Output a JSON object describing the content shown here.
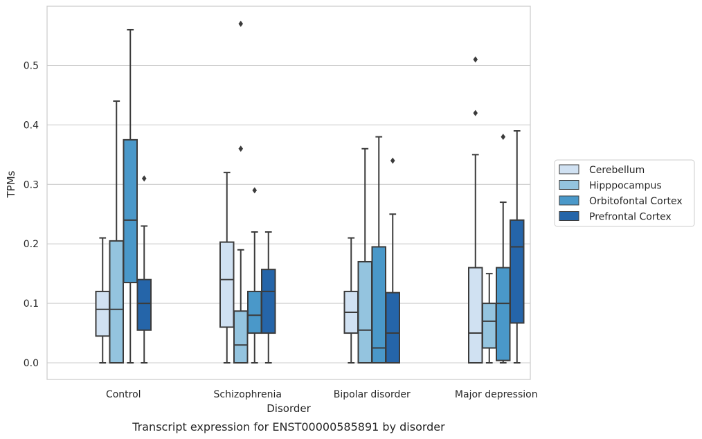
{
  "chart_data": {
    "type": "box",
    "xlabel": "Disorder",
    "ylabel": "TPMs",
    "caption": "Transcript expression for ENST00000585891 by disorder",
    "ylim": [
      -0.028,
      0.6
    ],
    "y_ticks": [
      0.0,
      0.1,
      0.2,
      0.3,
      0.4,
      0.5
    ],
    "y_tick_labels": [
      "0.0",
      "0.1",
      "0.2",
      "0.3",
      "0.4",
      "0.5"
    ],
    "grid": "horizontal",
    "legend_position": "right",
    "categories": [
      "Control",
      "Schizophrenia",
      "Bipolar disorder",
      "Major depression"
    ],
    "series": [
      {
        "name": "Cerebellum",
        "color": "#d0e1f2",
        "boxes": [
          {
            "whislo": 0.0,
            "q1": 0.045,
            "med": 0.09,
            "q3": 0.12,
            "whishi": 0.21,
            "fliers": []
          },
          {
            "whislo": 0.0,
            "q1": 0.06,
            "med": 0.14,
            "q3": 0.203,
            "whishi": 0.32,
            "fliers": []
          },
          {
            "whislo": 0.0,
            "q1": 0.05,
            "med": 0.085,
            "q3": 0.12,
            "whishi": 0.21,
            "fliers": []
          },
          {
            "whislo": 0.0,
            "q1": 0.0,
            "med": 0.05,
            "q3": 0.16,
            "whishi": 0.35,
            "fliers": [
              0.42,
              0.51
            ]
          }
        ]
      },
      {
        "name": "Hipppocampus",
        "color": "#94c4df",
        "boxes": [
          {
            "whislo": 0.0,
            "q1": 0.0,
            "med": 0.09,
            "q3": 0.205,
            "whishi": 0.44,
            "fliers": []
          },
          {
            "whislo": 0.0,
            "q1": 0.0,
            "med": 0.03,
            "q3": 0.087,
            "whishi": 0.19,
            "fliers": [
              0.36,
              0.57
            ]
          },
          {
            "whislo": 0.0,
            "q1": 0.0,
            "med": 0.055,
            "q3": 0.17,
            "whishi": 0.36,
            "fliers": []
          },
          {
            "whislo": 0.0,
            "q1": 0.025,
            "med": 0.07,
            "q3": 0.1,
            "whishi": 0.15,
            "fliers": []
          }
        ]
      },
      {
        "name": "Orbitofontal Cortex",
        "color": "#4a98c9",
        "boxes": [
          {
            "whislo": 0.0,
            "q1": 0.135,
            "med": 0.24,
            "q3": 0.375,
            "whishi": 0.56,
            "fliers": []
          },
          {
            "whislo": 0.0,
            "q1": 0.05,
            "med": 0.08,
            "q3": 0.12,
            "whishi": 0.22,
            "fliers": [
              0.29
            ]
          },
          {
            "whislo": 0.0,
            "q1": 0.0,
            "med": 0.025,
            "q3": 0.195,
            "whishi": 0.38,
            "fliers": []
          },
          {
            "whislo": 0.0,
            "q1": 0.004,
            "med": 0.1,
            "q3": 0.16,
            "whishi": 0.27,
            "fliers": [
              0.38
            ]
          }
        ]
      },
      {
        "name": "Prefrontal Cortex",
        "color": "#2565a9",
        "boxes": [
          {
            "whislo": 0.0,
            "q1": 0.055,
            "med": 0.1,
            "q3": 0.14,
            "whishi": 0.23,
            "fliers": [
              0.31
            ]
          },
          {
            "whislo": 0.0,
            "q1": 0.05,
            "med": 0.12,
            "q3": 0.157,
            "whishi": 0.22,
            "fliers": []
          },
          {
            "whislo": 0.0,
            "q1": 0.0,
            "med": 0.05,
            "q3": 0.118,
            "whishi": 0.25,
            "fliers": [
              0.34
            ]
          },
          {
            "whislo": 0.0,
            "q1": 0.067,
            "med": 0.195,
            "q3": 0.24,
            "whishi": 0.39,
            "fliers": []
          }
        ]
      }
    ]
  }
}
